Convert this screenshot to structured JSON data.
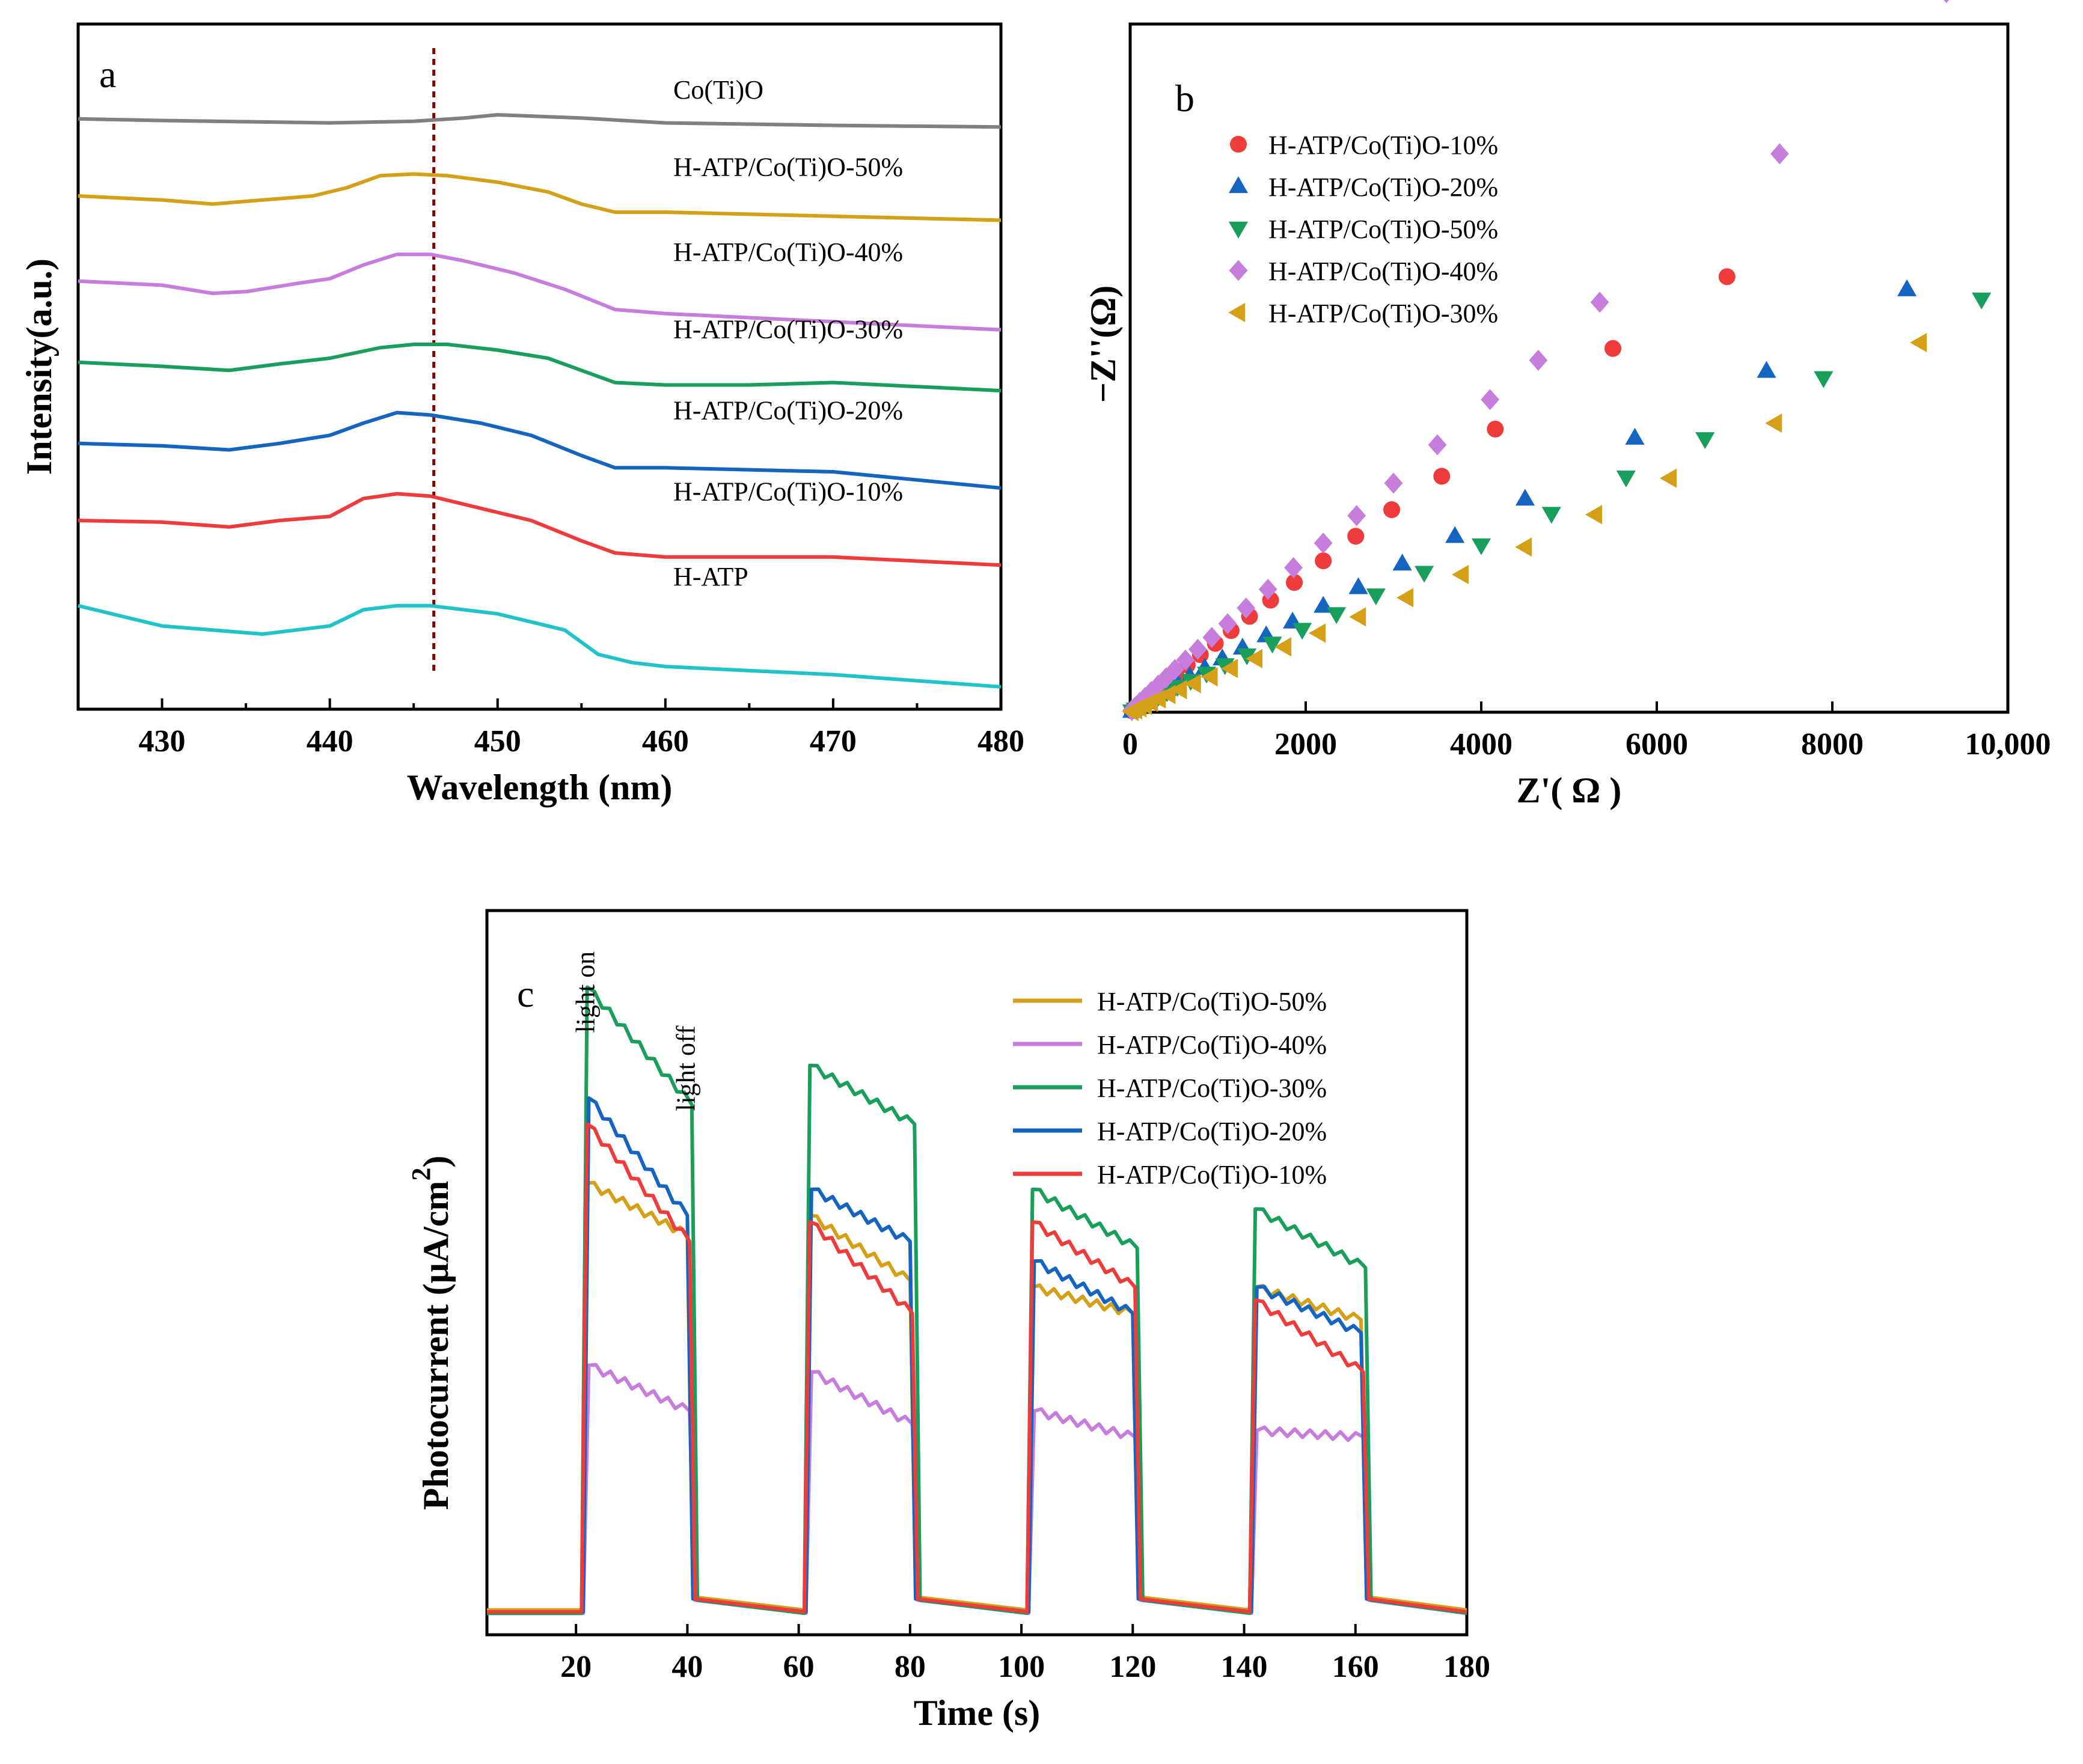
{
  "chart_data": [
    {
      "panel": "a",
      "type": "line",
      "xlabel": "Wavelength (nm)",
      "ylabel": "Intensity(a.u.)",
      "xlim": [
        425,
        480
      ],
      "xticks": [
        430,
        440,
        450,
        460,
        470,
        480
      ],
      "reference_line_x": 446.2,
      "series": [
        {
          "name": "Co(Ti)O",
          "color": "#808080",
          "offset": 6.3,
          "x": [
            425,
            430,
            440,
            445,
            448,
            450,
            455,
            460,
            470,
            480
          ],
          "y": [
            0.05,
            0.03,
            0.0,
            0.02,
            0.06,
            0.1,
            0.06,
            0.0,
            -0.03,
            -0.05
          ]
        },
        {
          "name": "H-ATP/Co(Ti)O-50%",
          "color": "#D4A017",
          "offset": 5.35,
          "x": [
            425,
            430,
            433,
            436,
            439,
            441,
            443,
            445,
            447,
            450,
            453,
            455,
            457,
            460,
            470,
            480
          ],
          "y": [
            0.05,
            0.0,
            -0.05,
            0.0,
            0.05,
            0.15,
            0.3,
            0.32,
            0.3,
            0.22,
            0.1,
            -0.05,
            -0.15,
            -0.15,
            -0.2,
            -0.25
          ]
        },
        {
          "name": "H-ATP/Co(Ti)O-40%",
          "color": "#C77DDB",
          "offset": 4.3,
          "x": [
            425,
            430,
            433,
            435,
            438,
            440,
            442,
            444,
            446,
            448,
            451,
            454,
            457,
            460,
            470,
            480
          ],
          "y": [
            0.05,
            0.0,
            -0.1,
            -0.08,
            0.02,
            0.08,
            0.25,
            0.38,
            0.38,
            0.3,
            0.15,
            -0.05,
            -0.3,
            -0.35,
            -0.45,
            -0.55
          ]
        },
        {
          "name": "H-ATP/Co(Ti)O-30%",
          "color": "#1A9E5C",
          "offset": 3.35,
          "x": [
            425,
            430,
            434,
            437,
            440,
            443,
            445,
            447,
            450,
            453,
            455,
            457,
            460,
            465,
            470,
            480
          ],
          "y": [
            0.0,
            -0.05,
            -0.1,
            -0.02,
            0.05,
            0.18,
            0.22,
            0.22,
            0.15,
            0.05,
            -0.1,
            -0.25,
            -0.28,
            -0.28,
            -0.25,
            -0.35
          ]
        },
        {
          "name": "H-ATP/Co(Ti)O-20%",
          "color": "#1565C0",
          "offset": 2.35,
          "x": [
            425,
            430,
            434,
            437,
            440,
            442,
            444,
            446,
            449,
            452,
            455,
            457,
            460,
            470,
            480
          ],
          "y": [
            0.0,
            -0.03,
            -0.08,
            0.0,
            0.1,
            0.25,
            0.38,
            0.35,
            0.25,
            0.1,
            -0.15,
            -0.3,
            -0.3,
            -0.35,
            -0.55
          ]
        },
        {
          "name": "H-ATP/Co(Ti)O-10%",
          "color": "#EE3B3B",
          "offset": 1.35,
          "x": [
            425,
            430,
            434,
            437,
            440,
            442,
            444,
            446,
            449,
            452,
            455,
            457,
            460,
            470,
            480
          ],
          "y": [
            0.05,
            0.03,
            -0.03,
            0.05,
            0.1,
            0.32,
            0.38,
            0.35,
            0.2,
            0.05,
            -0.2,
            -0.35,
            -0.4,
            -0.4,
            -0.5
          ]
        },
        {
          "name": "H-ATP",
          "color": "#22C3C8",
          "offset": 0.3,
          "x": [
            425,
            430,
            436,
            440,
            442,
            444,
            446,
            450,
            454,
            456,
            458,
            460,
            470,
            480
          ],
          "y": [
            0.05,
            -0.2,
            -0.3,
            -0.2,
            0.0,
            0.05,
            0.05,
            -0.05,
            -0.25,
            -0.55,
            -0.65,
            -0.7,
            -0.8,
            -0.95
          ]
        }
      ]
    },
    {
      "panel": "b",
      "type": "scatter",
      "xlabel": "Z'( Ω )",
      "ylabel": "−Z''(Ω)",
      "xlim": [
        0,
        10000
      ],
      "ylim": [
        0,
        7000
      ],
      "xticks": [
        0,
        2000,
        4000,
        6000,
        8000,
        10000
      ],
      "xtick_labels": [
        "0",
        "2000",
        "4000",
        "6000",
        "8000",
        "10,000"
      ],
      "series": [
        {
          "name": "H-ATP/Co(Ti)O-10%",
          "color": "#EE3B3B",
          "marker": "circle",
          "x": [
            20,
            60,
            110,
            170,
            240,
            320,
            410,
            520,
            650,
            800,
            970,
            1150,
            1360,
            1600,
            1870,
            2200,
            2570,
            2980,
            3550,
            4160,
            5500,
            6800
          ],
          "y": [
            15,
            45,
            85,
            130,
            185,
            245,
            310,
            390,
            480,
            585,
            700,
            830,
            975,
            1140,
            1320,
            1540,
            1790,
            2060,
            2400,
            2880,
            3700,
            4430
          ]
        },
        {
          "name": "H-ATP/Co(Ti)O-20%",
          "color": "#1565C0",
          "marker": "triangle-up",
          "x": [
            20,
            60,
            110,
            170,
            240,
            320,
            420,
            540,
            680,
            850,
            1050,
            1280,
            1550,
            1850,
            2200,
            2600,
            3100,
            3700,
            4500,
            5750,
            7250,
            8850
          ],
          "y": [
            12,
            35,
            65,
            100,
            140,
            185,
            235,
            295,
            365,
            450,
            545,
            655,
            780,
            920,
            1080,
            1270,
            1510,
            1790,
            2170,
            2790,
            3470,
            4300
          ]
        },
        {
          "name": "H-ATP/Co(Ti)O-50%",
          "color": "#1A9E5C",
          "marker": "triangle-down",
          "x": [
            20,
            60,
            110,
            170,
            240,
            320,
            420,
            540,
            690,
            870,
            1080,
            1330,
            1620,
            1960,
            2350,
            2800,
            3350,
            4000,
            4800,
            5650,
            6550,
            7900,
            9700
          ],
          "y": [
            10,
            30,
            55,
            85,
            120,
            160,
            205,
            260,
            320,
            395,
            480,
            580,
            700,
            840,
            1000,
            1190,
            1420,
            1700,
            2020,
            2390,
            2780,
            3400,
            4200
          ]
        },
        {
          "name": "H-ATP/Co(Ti)O-40%",
          "color": "#C77DDB",
          "marker": "diamond",
          "x": [
            20,
            60,
            110,
            170,
            240,
            320,
            410,
            510,
            630,
            770,
            930,
            1110,
            1320,
            1570,
            1860,
            2200,
            2580,
            3000,
            3500,
            4100,
            4650,
            5350,
            7400,
            9300
          ],
          "y": [
            20,
            55,
            100,
            150,
            210,
            275,
            350,
            435,
            530,
            640,
            760,
            900,
            1060,
            1250,
            1470,
            1720,
            2000,
            2330,
            2720,
            3180,
            3580,
            4170,
            5680,
            7320
          ]
        },
        {
          "name": "H-ATP/Co(Ti)O-30%",
          "color": "#D4A017",
          "marker": "triangle-left",
          "x": [
            20,
            60,
            110,
            170,
            240,
            330,
            440,
            570,
            730,
            920,
            1150,
            1430,
            1760,
            2150,
            2610,
            3150,
            3780,
            4500,
            5300,
            6150,
            7350,
            9000
          ],
          "y": [
            8,
            25,
            45,
            70,
            100,
            135,
            180,
            230,
            290,
            360,
            445,
            545,
            665,
            805,
            970,
            1165,
            1400,
            1680,
            2010,
            2380,
            2940,
            3760
          ]
        }
      ],
      "legend_position": "top-left"
    },
    {
      "panel": "c",
      "type": "line",
      "xlabel": "Time (s)",
      "ylabel": "Photocurrent (μA/cm",
      "ylabel_superscript": "2",
      "ylabel_close": ")",
      "xlim": [
        4,
        180
      ],
      "ylim": [
        0,
        1.0
      ],
      "xticks": [
        20,
        40,
        60,
        80,
        100,
        120,
        140,
        160,
        180
      ],
      "annotations": [
        {
          "text": "light on",
          "x": 22,
          "y": 0.9
        },
        {
          "text": "light off",
          "x": 40,
          "y": 0.78
        }
      ],
      "light_cycles": [
        [
          21,
          40
        ],
        [
          61,
          80
        ],
        [
          101,
          120
        ],
        [
          141,
          161
        ]
      ],
      "series": [
        {
          "name": "H-ATP/Co(Ti)O-50%",
          "color": "#D4A017",
          "plateaus": [
            [
              0.67,
              0.59
            ],
            [
              0.62,
              0.52
            ],
            [
              0.51,
              0.47
            ],
            [
              0.51,
              0.46
            ]
          ],
          "baseline": 0.015
        },
        {
          "name": "H-ATP/Co(Ti)O-40%",
          "color": "#C77DDB",
          "plateaus": [
            [
              0.39,
              0.32
            ],
            [
              0.38,
              0.3
            ],
            [
              0.32,
              0.28
            ],
            [
              0.29,
              0.28
            ]
          ],
          "baseline": 0.01
        },
        {
          "name": "H-ATP/Co(Ti)O-30%",
          "color": "#1A9E5C",
          "plateaus": [
            [
              0.97,
              0.79
            ],
            [
              0.85,
              0.76
            ],
            [
              0.66,
              0.57
            ],
            [
              0.63,
              0.54
            ]
          ],
          "baseline": 0.01
        },
        {
          "name": "H-ATP/Co(Ti)O-20%",
          "color": "#1565C0",
          "plateaus": [
            [
              0.8,
              0.62
            ],
            [
              0.66,
              0.58
            ],
            [
              0.55,
              0.47
            ],
            [
              0.51,
              0.44
            ]
          ],
          "baseline": 0.012
        },
        {
          "name": "H-ATP/Co(Ti)O-10%",
          "color": "#EE3B3B",
          "plateaus": [
            [
              0.76,
              0.58
            ],
            [
              0.61,
              0.47
            ],
            [
              0.61,
              0.51
            ],
            [
              0.49,
              0.38
            ]
          ],
          "baseline": 0.012
        }
      ],
      "legend_position": "top-right"
    }
  ]
}
